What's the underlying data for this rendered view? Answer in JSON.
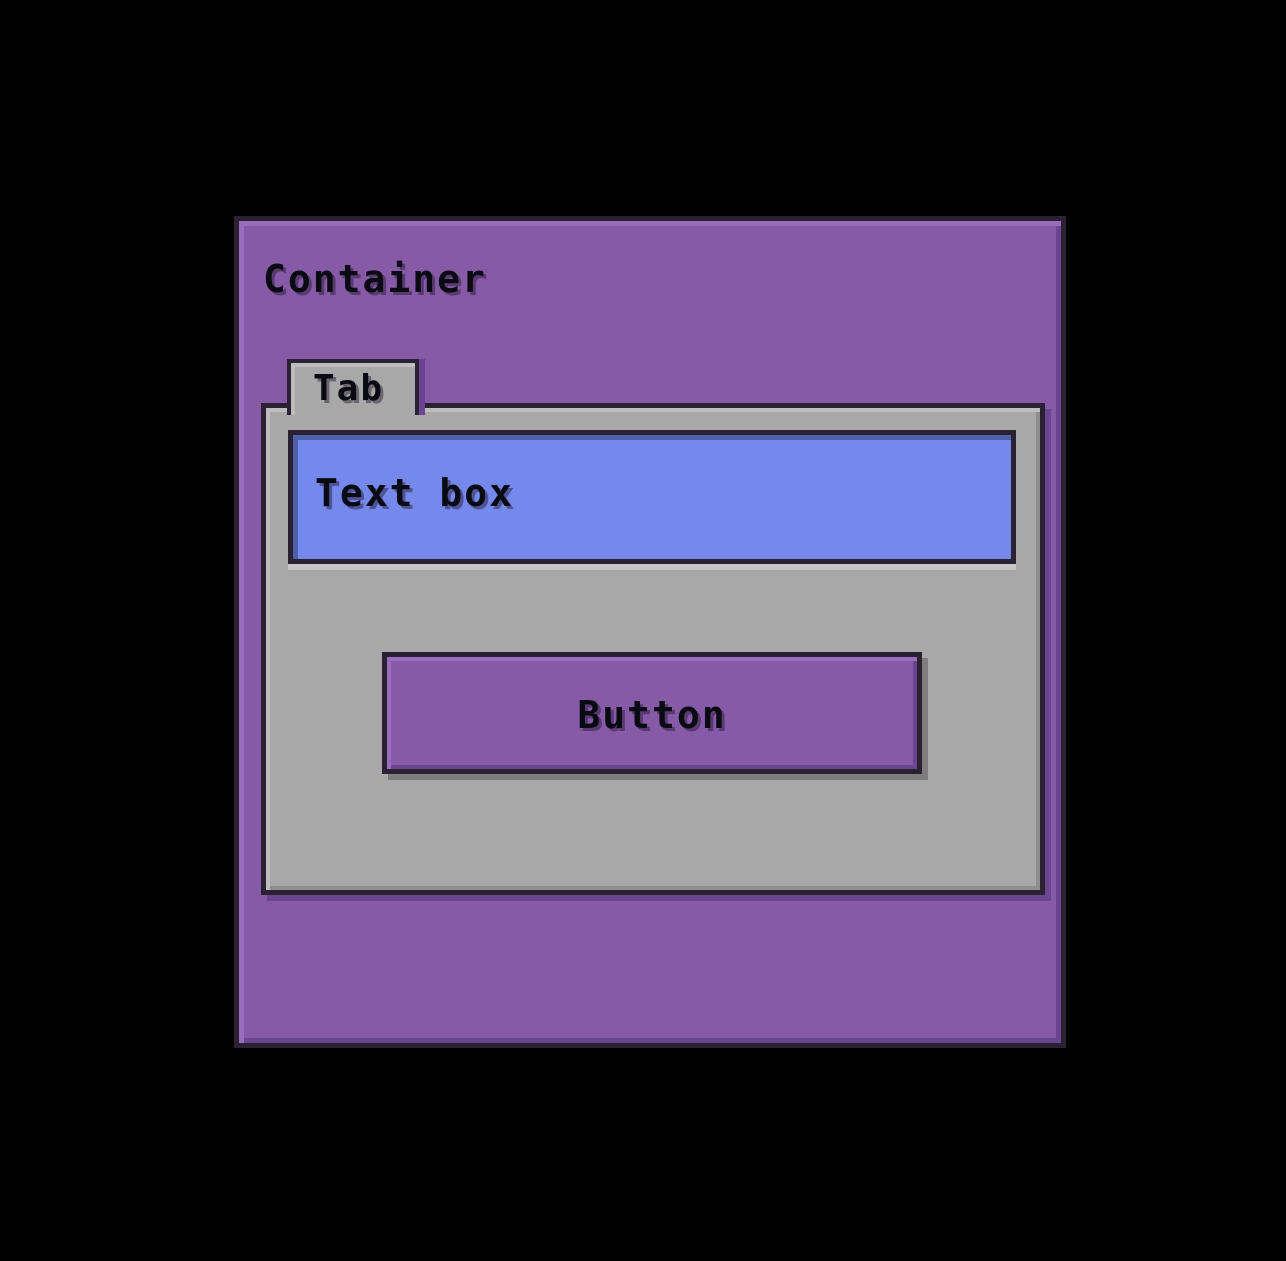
{
  "container": {
    "title": "Container"
  },
  "tab": {
    "label": "Tab"
  },
  "textbox": {
    "value": "Text box"
  },
  "button": {
    "label": "Button"
  },
  "colors": {
    "background": "#000000",
    "container": "#875aa8",
    "panel": "#a8a8a8",
    "textbox": "#7589ec",
    "button": "#875aa8",
    "outline": "#2a2233"
  }
}
